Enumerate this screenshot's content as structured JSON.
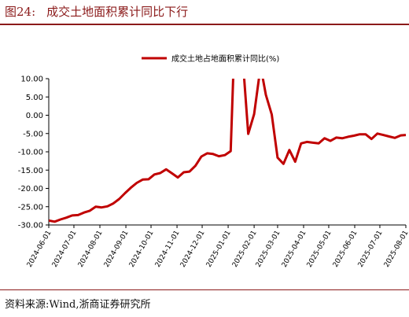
{
  "header": {
    "figure_label": "图24:",
    "title": "成交土地面积累计同比下行"
  },
  "footer": {
    "source": "资料来源:Wind,浙商证券研究所"
  },
  "chart_data": {
    "type": "line",
    "title": "成交土地面积累计同比下行",
    "xlabel": "",
    "ylabel": "",
    "ylim": [
      -30,
      10
    ],
    "y_ticks": [
      "10.00",
      "5.00",
      "0.00",
      "-5.00",
      "-10.00",
      "-15.00",
      "-20.00",
      "-25.00",
      "-30.00"
    ],
    "x_ticks": [
      "2024-06-01",
      "2024-07-01",
      "2024-08-01",
      "2024-09-01",
      "2024-10-01",
      "2024-11-01",
      "2024-12-01",
      "2025-01-01",
      "2025-02-01",
      "2025-03-01",
      "2025-04-01",
      "2025-05-01",
      "2025-06-01",
      "2025-07-01",
      "2025-08-01"
    ],
    "grid": false,
    "legend_position": "top-center",
    "series": [
      {
        "name": "成交土地占地面积累计同比(%)",
        "color": "#c00000",
        "points": [
          [
            "2024-06-01",
            -28.8
          ],
          [
            "2024-06-08",
            -29.1
          ],
          [
            "2024-06-15",
            -28.5
          ],
          [
            "2024-06-22",
            -28.0
          ],
          [
            "2024-06-29",
            -27.4
          ],
          [
            "2024-07-06",
            -27.3
          ],
          [
            "2024-07-13",
            -26.6
          ],
          [
            "2024-07-20",
            -26.1
          ],
          [
            "2024-07-27",
            -25.0
          ],
          [
            "2024-08-03",
            -25.2
          ],
          [
            "2024-08-10",
            -24.9
          ],
          [
            "2024-08-17",
            -24.1
          ],
          [
            "2024-08-24",
            -22.9
          ],
          [
            "2024-08-31",
            -21.3
          ],
          [
            "2024-09-07",
            -19.8
          ],
          [
            "2024-09-14",
            -18.5
          ],
          [
            "2024-09-21",
            -17.6
          ],
          [
            "2024-09-28",
            -17.5
          ],
          [
            "2024-10-05",
            -16.2
          ],
          [
            "2024-10-12",
            -15.8
          ],
          [
            "2024-10-19",
            -14.8
          ],
          [
            "2024-10-26",
            -15.9
          ],
          [
            "2024-11-02",
            -17.0
          ],
          [
            "2024-11-09",
            -15.6
          ],
          [
            "2024-11-16",
            -15.4
          ],
          [
            "2024-11-23",
            -13.8
          ],
          [
            "2024-11-30",
            -11.3
          ],
          [
            "2024-12-07",
            -10.4
          ],
          [
            "2024-12-14",
            -10.6
          ],
          [
            "2024-12-21",
            -11.2
          ],
          [
            "2024-12-28",
            -10.9
          ],
          [
            "2025-01-04",
            -9.8
          ],
          [
            "2025-01-07",
            10.5
          ],
          [
            "2025-01-20",
            10.5
          ],
          [
            "2025-01-25",
            -5.1
          ],
          [
            "2025-02-01",
            0.3
          ],
          [
            "2025-02-07",
            10.5
          ],
          [
            "2025-02-11",
            10.5
          ],
          [
            "2025-02-15",
            5.6
          ],
          [
            "2025-02-22",
            0.2
          ],
          [
            "2025-03-01",
            -11.6
          ],
          [
            "2025-03-08",
            -13.3
          ],
          [
            "2025-03-15",
            -9.5
          ],
          [
            "2025-03-22",
            -12.7
          ],
          [
            "2025-03-29",
            -7.7
          ],
          [
            "2025-04-05",
            -7.3
          ],
          [
            "2025-04-12",
            -7.5
          ],
          [
            "2025-04-19",
            -7.7
          ],
          [
            "2025-04-26",
            -6.3
          ],
          [
            "2025-05-03",
            -7.0
          ],
          [
            "2025-05-10",
            -6.1
          ],
          [
            "2025-05-17",
            -6.3
          ],
          [
            "2025-05-24",
            -5.9
          ],
          [
            "2025-05-31",
            -5.6
          ],
          [
            "2025-06-07",
            -5.2
          ],
          [
            "2025-06-14",
            -5.2
          ],
          [
            "2025-06-21",
            -6.5
          ],
          [
            "2025-06-28",
            -5.0
          ],
          [
            "2025-07-05",
            -5.4
          ],
          [
            "2025-07-12",
            -5.8
          ],
          [
            "2025-07-19",
            -6.2
          ],
          [
            "2025-07-26",
            -5.5
          ],
          [
            "2025-08-01",
            -5.4
          ]
        ]
      }
    ]
  }
}
